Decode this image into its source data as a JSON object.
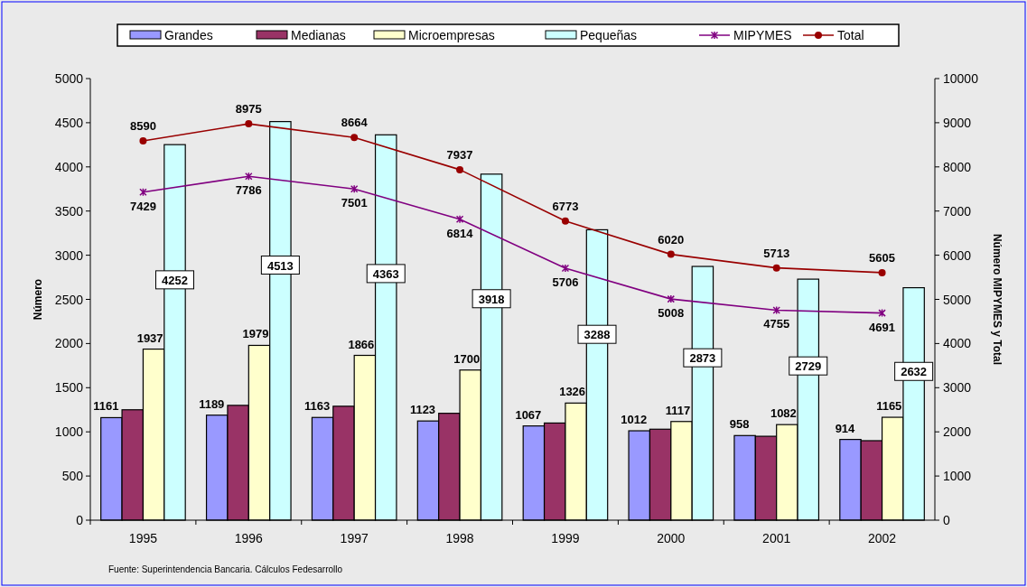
{
  "chart_data": {
    "type": "bar",
    "categories": [
      "1995",
      "1996",
      "1997",
      "1998",
      "1999",
      "2000",
      "2001",
      "2002"
    ],
    "ylabel": "Número",
    "y2label": "Número MIPYMES y Total",
    "ylim": [
      0,
      5000
    ],
    "yticks": [
      0,
      500,
      1000,
      1500,
      2000,
      2500,
      3000,
      3500,
      4000,
      4500,
      5000
    ],
    "y2lim": [
      0,
      10000
    ],
    "y2ticks": [
      0,
      1000,
      2000,
      3000,
      4000,
      5000,
      6000,
      7000,
      8000,
      9000,
      10000
    ],
    "grid": false,
    "legend": "top",
    "series": [
      {
        "name": "Grandes",
        "color": "#9999ff",
        "values": [
          1161,
          1189,
          1163,
          1123,
          1067,
          1012,
          958,
          914
        ],
        "value_labels": [
          "1161",
          "1189",
          "1163",
          "1123",
          "1067",
          "1012",
          "958",
          "914"
        ]
      },
      {
        "name": "Medianas",
        "color": "#993366",
        "values": [
          1250,
          1300,
          1290,
          1210,
          1100,
          1030,
          950,
          900
        ]
      },
      {
        "name": "Microempresas",
        "color": "#ffffcc",
        "values": [
          1937,
          1979,
          1866,
          1700,
          1326,
          1117,
          1082,
          1165
        ],
        "value_labels": [
          "1937",
          "1979",
          "1866",
          "1700",
          "1326",
          "1117",
          "1082",
          "1165"
        ]
      },
      {
        "name": "Pequeñas",
        "color": "#ccffff",
        "values": [
          4252,
          4513,
          4363,
          3918,
          3288,
          2873,
          2729,
          2632
        ],
        "value_labels": [
          "4252",
          "4513",
          "4363",
          "3918",
          "3288",
          "2873",
          "2729",
          "2632"
        ]
      },
      {
        "name": "MIPYMES",
        "type": "line",
        "axis": "y2",
        "marker": "cross",
        "color": "#800080",
        "values": [
          7429,
          7786,
          7501,
          6814,
          5706,
          5008,
          4755,
          4691
        ],
        "value_labels": [
          "7429",
          "7786",
          "7501",
          "6814",
          "5706",
          "5008",
          "4755",
          "4691"
        ]
      },
      {
        "name": "Total",
        "type": "line",
        "axis": "y2",
        "marker": "circle",
        "color": "#990000",
        "values": [
          8590,
          8975,
          8664,
          7937,
          6773,
          6020,
          5713,
          5605
        ],
        "value_labels": [
          "8590",
          "8975",
          "8664",
          "7937",
          "6773",
          "6020",
          "5713",
          "5605"
        ]
      }
    ],
    "annotations": [
      "Fuente: Superintendencia Bancaria. Cálculos Fedesarrollo"
    ]
  }
}
